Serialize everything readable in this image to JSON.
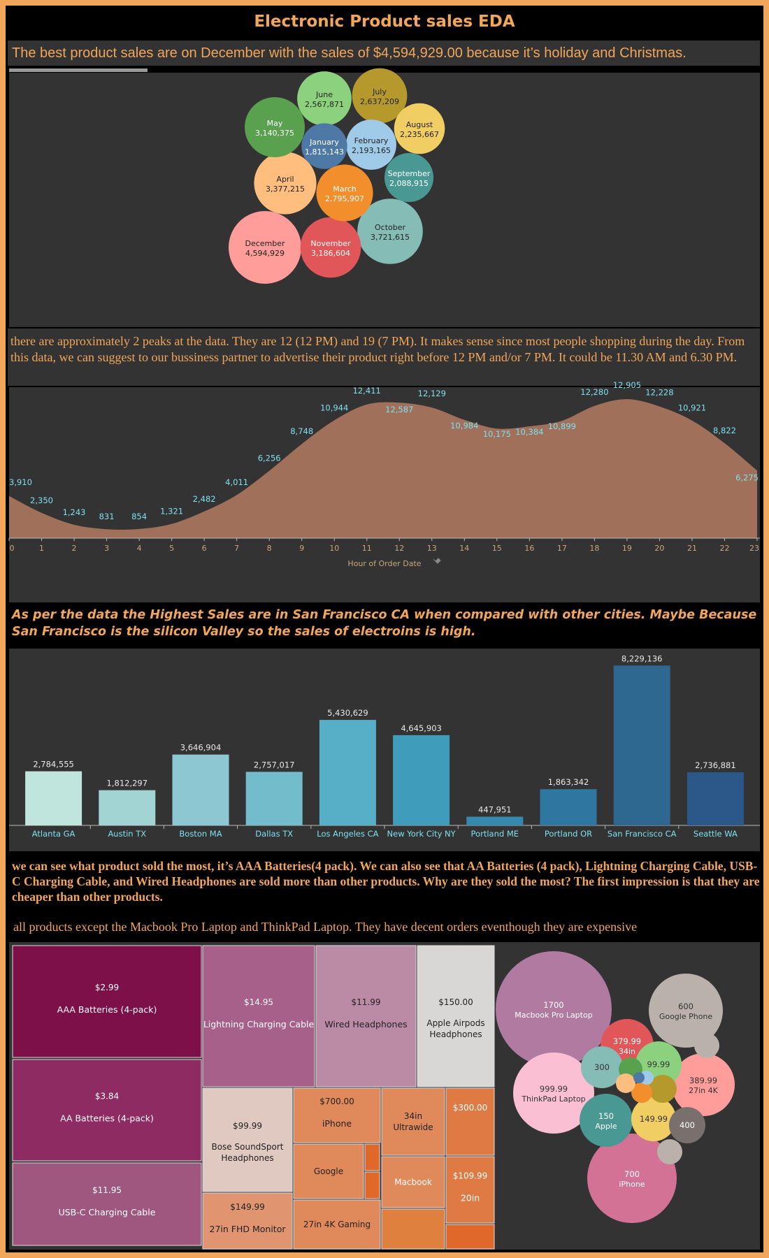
{
  "title": "Electronic Product sales EDA",
  "captions": {
    "monthly": "The best product sales are on December with the sales of $4,594,929.00 because it’s holiday and Christmas.",
    "hourly": "there are approximately 2 peaks at the data. They are 12 (12 PM) and 19 (7 PM). It makes sense since most people shopping during the day. From this data, we can suggest to our bussiness partner to advertise their product right before 12 PM and/or 7 PM. It could be 11.30 AM and 6.30 PM.",
    "city": "As per the data the Highest Sales are in San Francisco CA when compared with other cities. Maybe Because San Francisco is the silicon Valley so the sales of electroins is high.",
    "product": "we can see what product sold the most, it’s AAA Batteries(4 pack). We can also see that AA Batteries (4 pack), Lightning Charging Cable, USB-C Charging Cable, and Wired Headphones are sold more than other products. Why are they sold the most? The first impression is that they are cheaper than other products.",
    "price": "all products except the Macbook Pro Laptop and ThinkPad Laptop. They have decent orders eventhough they are expensive"
  },
  "chart_data": [
    {
      "type": "bubble",
      "series": [
        {
          "name": "December",
          "value": 4594929,
          "label": "4,594,929",
          "color": "#ff9d9a"
        },
        {
          "name": "October",
          "value": 3721615,
          "label": "3,721,615",
          "color": "#86bcb6"
        },
        {
          "name": "April",
          "value": 3377215,
          "label": "3,377,215",
          "color": "#ffbe7d"
        },
        {
          "name": "November",
          "value": 3186604,
          "label": "3,186,604",
          "color": "#e15759"
        },
        {
          "name": "May",
          "value": 3140375,
          "label": "3,140,375",
          "color": "#59a14f"
        },
        {
          "name": "March",
          "value": 2795907,
          "label": "2,795,907",
          "color": "#f28e2b"
        },
        {
          "name": "July",
          "value": 2637209,
          "label": "2,637,209",
          "color": "#b6992d"
        },
        {
          "name": "June",
          "value": 2567871,
          "label": "2,567,871",
          "color": "#8cd17d"
        },
        {
          "name": "August",
          "value": 2235667,
          "label": "2,235,667",
          "color": "#f1ce63"
        },
        {
          "name": "February",
          "value": 2193165,
          "label": "2,193,165",
          "color": "#a0cbe8"
        },
        {
          "name": "September",
          "value": 2088915,
          "label": "2,088,915",
          "color": "#499894"
        },
        {
          "name": "January",
          "value": 1815143,
          "label": "1,815,143",
          "color": "#4e79a7"
        }
      ]
    },
    {
      "type": "area",
      "xlabel": "Hour of Order Date",
      "x": [
        0,
        1,
        2,
        3,
        4,
        5,
        6,
        7,
        8,
        9,
        10,
        11,
        12,
        13,
        14,
        15,
        16,
        17,
        18,
        19,
        20,
        21,
        22,
        23
      ],
      "values": [
        3910,
        2350,
        1243,
        831,
        854,
        1321,
        2482,
        4011,
        6256,
        8748,
        10944,
        12411,
        12587,
        12129,
        10984,
        10175,
        10384,
        10899,
        12280,
        12905,
        12228,
        10921,
        8822,
        6275
      ],
      "labels": [
        "3,910",
        "2,350",
        "1,243",
        "831",
        "854",
        "1,321",
        "2,482",
        "4,011",
        "6,256",
        "8,748",
        "10,944",
        "12,411",
        "12,587",
        "12,129",
        "10,984",
        "10,175",
        "10,384",
        "10,899",
        "12,280",
        "12,905",
        "12,228",
        "10,921",
        "8,822",
        "6,275"
      ],
      "ylim": [
        0,
        13500
      ],
      "color": "#a0705a",
      "label_color": "#7de0ef"
    },
    {
      "type": "bar",
      "categories": [
        "Atlanta GA",
        "Austin TX",
        "Boston MA",
        "Dallas TX",
        "Los Angeles CA",
        "New York City NY",
        "Portland ME",
        "Portland OR",
        "San Francisco CA",
        "Seattle WA"
      ],
      "values": [
        2784555,
        1812297,
        3646904,
        2757017,
        5430629,
        4645903,
        447951,
        1863342,
        8229136,
        2736881
      ],
      "labels": [
        "2,784,555",
        "1,812,297",
        "3,646,904",
        "2,757,017",
        "5,430,629",
        "4,645,903",
        "447,951",
        "1,863,342",
        "8,229,136",
        "2,736,881"
      ],
      "colors": [
        "#c0e5dc",
        "#a2d4d3",
        "#8cc7d2",
        "#72bccc",
        "#56afc6",
        "#3f9cba",
        "#3589ad",
        "#2f77a0",
        "#2e6890",
        "#2b5888"
      ],
      "ylim": [
        0,
        8600000
      ]
    },
    {
      "type": "treemap",
      "items": [
        {
          "price": "$2.99",
          "name": "AAA Batteries (4-pack)",
          "color": "#7d1048",
          "text": "#fff"
        },
        {
          "price": "$3.84",
          "name": "AA Batteries (4-pack)",
          "color": "#8e2b62",
          "text": "#fff"
        },
        {
          "price": "$11.95",
          "name": "USB-C Charging Cable",
          "color": "#a0577f",
          "text": "#fff"
        },
        {
          "price": "$14.95",
          "name": "Lightning Charging Cable",
          "color": "#a6608a",
          "text": "#fff"
        },
        {
          "price": "$11.99",
          "name": "Wired Headphones",
          "color": "#bb8ba6",
          "text": "#222"
        },
        {
          "price": "$150.00",
          "name": "Apple Airpods Headphones",
          "color": "#d9d6d6",
          "text": "#222"
        },
        {
          "price": "$99.99",
          "name": "Bose SoundSport Headphones",
          "color": "#e0c9c0",
          "text": "#222"
        },
        {
          "price": "$700.00",
          "name": "iPhone",
          "color": "#e0895a",
          "text": "#222"
        },
        {
          "price": "",
          "name": "34in Ultrawide",
          "color": "#e0895a",
          "text": "#222"
        },
        {
          "price": "$300.00",
          "name": "",
          "color": "#e07a45",
          "text": "#fff"
        },
        {
          "price": "",
          "name": "Google",
          "color": "#e0895a",
          "text": "#222"
        },
        {
          "price": "",
          "name": "Macbook",
          "color": "#e0895a",
          "text": "#fff"
        },
        {
          "price": "$109.99",
          "name": "20in",
          "color": "#e07a45",
          "text": "#fff"
        },
        {
          "price": "$149.99",
          "name": "27in FHD Monitor",
          "color": "#e09570",
          "text": "#222"
        },
        {
          "price": "",
          "name": "27in 4K Gaming",
          "color": "#e0895a",
          "text": "#222"
        },
        {
          "price": "",
          "name": "",
          "color": "#e0682a",
          "text": "#fff"
        },
        {
          "price": "",
          "name": "",
          "color": "#e0682a",
          "text": "#fff"
        },
        {
          "price": "",
          "name": "",
          "color": "#e0803e",
          "text": "#fff"
        },
        {
          "price": "",
          "name": "",
          "color": "#e0682a",
          "text": "#fff"
        }
      ]
    },
    {
      "type": "bubble",
      "series": [
        {
          "label1": "1700",
          "label2": "Macbook Pro Laptop",
          "color": "#b07aa1"
        },
        {
          "label1": "999.99",
          "label2": "ThinkPad Laptop",
          "color": "#fabfd2"
        },
        {
          "label1": "700",
          "label2": "iPhone",
          "color": "#d37295"
        },
        {
          "label1": "600",
          "label2": "Google Phone",
          "color": "#bab0ac"
        },
        {
          "label1": "379.99",
          "label2": "34in",
          "color": "#e15759"
        },
        {
          "label1": "389.99",
          "label2": "27in 4K",
          "color": "#ff9d9a"
        },
        {
          "label1": "150",
          "label2": "Apple",
          "color": "#499894"
        },
        {
          "label1": "300",
          "label2": "",
          "color": "#86bcb6"
        },
        {
          "label1": "99.99",
          "label2": "",
          "color": "#8cd17d"
        },
        {
          "label1": "149.99",
          "label2": "",
          "color": "#f1ce63"
        },
        {
          "label1": "400",
          "label2": "",
          "color": "#79706e"
        },
        {
          "label1": "",
          "label2": "",
          "color": "#bab0ac"
        },
        {
          "label1": "",
          "label2": "",
          "color": "#bab0ac"
        },
        {
          "label1": "",
          "label2": "",
          "color": "#59a14f"
        },
        {
          "label1": "",
          "label2": "",
          "color": "#b6992d"
        },
        {
          "label1": "",
          "label2": "",
          "color": "#f28e2b"
        },
        {
          "label1": "",
          "label2": "",
          "color": "#ffbe7d"
        },
        {
          "label1": "",
          "label2": "",
          "color": "#a0cbe8"
        },
        {
          "label1": "",
          "label2": "",
          "color": "#4e79a7"
        }
      ]
    }
  ]
}
